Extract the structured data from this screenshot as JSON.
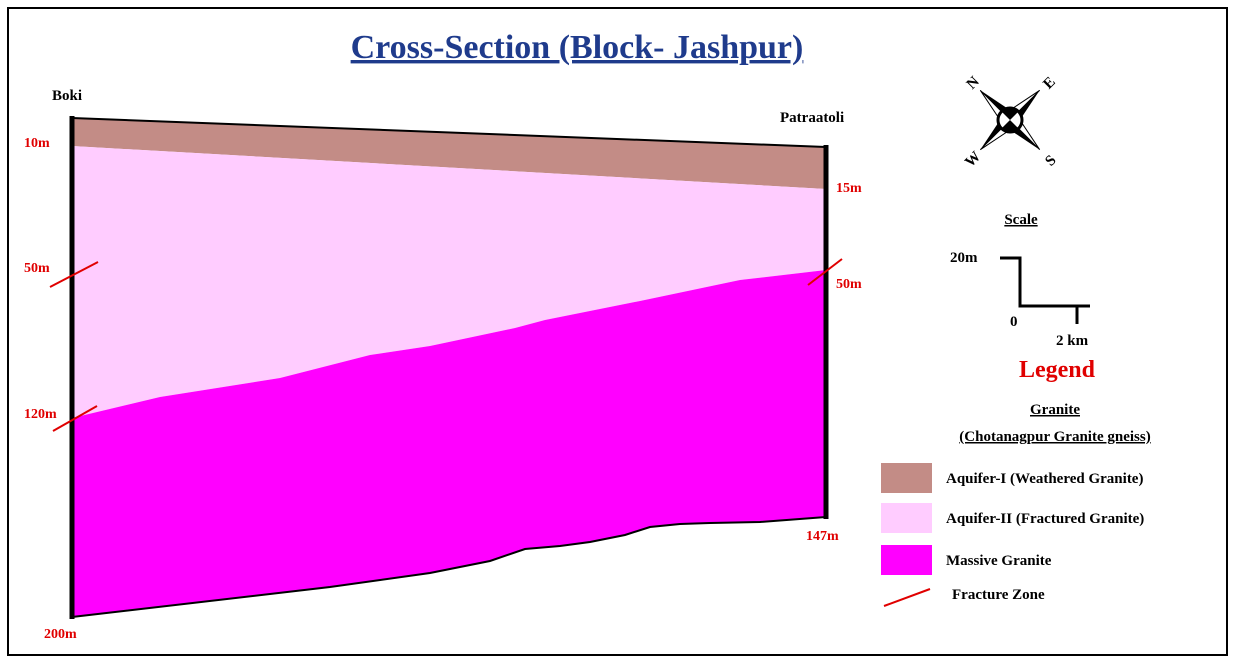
{
  "title": "Cross-Section (Block- Jashpur)",
  "section": {
    "left_site": "Boki",
    "right_site": "Patraatoli",
    "left_depths": [
      "10m",
      "50m",
      "120m",
      "200m"
    ],
    "right_depths": [
      "15m",
      "50m",
      "147m"
    ]
  },
  "compass": {
    "w": "W",
    "n": "N",
    "s": "S",
    "e": "E"
  },
  "scale": {
    "title": "Scale",
    "vertical": "20m",
    "origin": "0",
    "horizontal": "2 km"
  },
  "legend": {
    "title": "Legend",
    "heading": "Granite",
    "subheading": "(Chotanagpur Granite gneiss)",
    "items": [
      "Aquifer-I (Weathered Granite)",
      "Aquifer-II (Fractured Granite)",
      "Massive Granite",
      "Fracture Zone"
    ]
  }
}
